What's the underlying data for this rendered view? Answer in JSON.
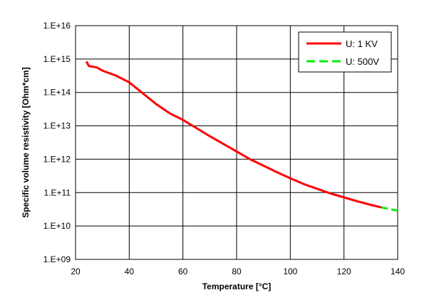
{
  "chart_data": {
    "type": "line",
    "title": "",
    "xlabel": "Temperature [°C]",
    "ylabel": "Specific volume resistivity [Ohm*cm]",
    "xlim": [
      20,
      140
    ],
    "ylim": [
      1000000000.0,
      1e+16
    ],
    "yscale": "log",
    "grid": true,
    "legend_position": "top-right",
    "x_ticks": [
      "20",
      "40",
      "60",
      "80",
      "100",
      "120",
      "140"
    ],
    "y_ticks": [
      "1.E+09",
      "1.E+10",
      "1.E+11",
      "1.E+12",
      "1.E+13",
      "1.E+14",
      "1.E+15",
      "1.E+16"
    ],
    "series": [
      {
        "name": "U: 1 KV",
        "color": "#ff0000",
        "dash": "solid",
        "points": [
          [
            24,
            850000000000000.0
          ],
          [
            25,
            620000000000000.0
          ],
          [
            28,
            560000000000000.0
          ],
          [
            30,
            450000000000000.0
          ],
          [
            35,
            320000000000000.0
          ],
          [
            40,
            200000000000000.0
          ],
          [
            45,
            95000000000000.0
          ],
          [
            50,
            45000000000000.0
          ],
          [
            55,
            24000000000000.0
          ],
          [
            60,
            15000000000000.0
          ],
          [
            65,
            8600000000000.0
          ],
          [
            70,
            4900000000000.0
          ],
          [
            75,
            2900000000000.0
          ],
          [
            80,
            1700000000000.0
          ],
          [
            85,
            1000000000000.0
          ],
          [
            90,
            640000000000.0
          ],
          [
            95,
            410000000000.0
          ],
          [
            100,
            270000000000.0
          ],
          [
            105,
            180000000000.0
          ],
          [
            110,
            130000000000.0
          ],
          [
            115,
            94000000000.0
          ],
          [
            120,
            72000000000.0
          ],
          [
            125,
            55000000000.0
          ],
          [
            130,
            43000000000.0
          ],
          [
            134,
            36000000000.0
          ]
        ]
      },
      {
        "name": "U: 500V",
        "color": "#00ee00",
        "dash": "dashed",
        "points": [
          [
            134,
            36000000000.0
          ],
          [
            137,
            32000000000.0
          ],
          [
            140,
            29000000000.0
          ]
        ]
      }
    ]
  }
}
